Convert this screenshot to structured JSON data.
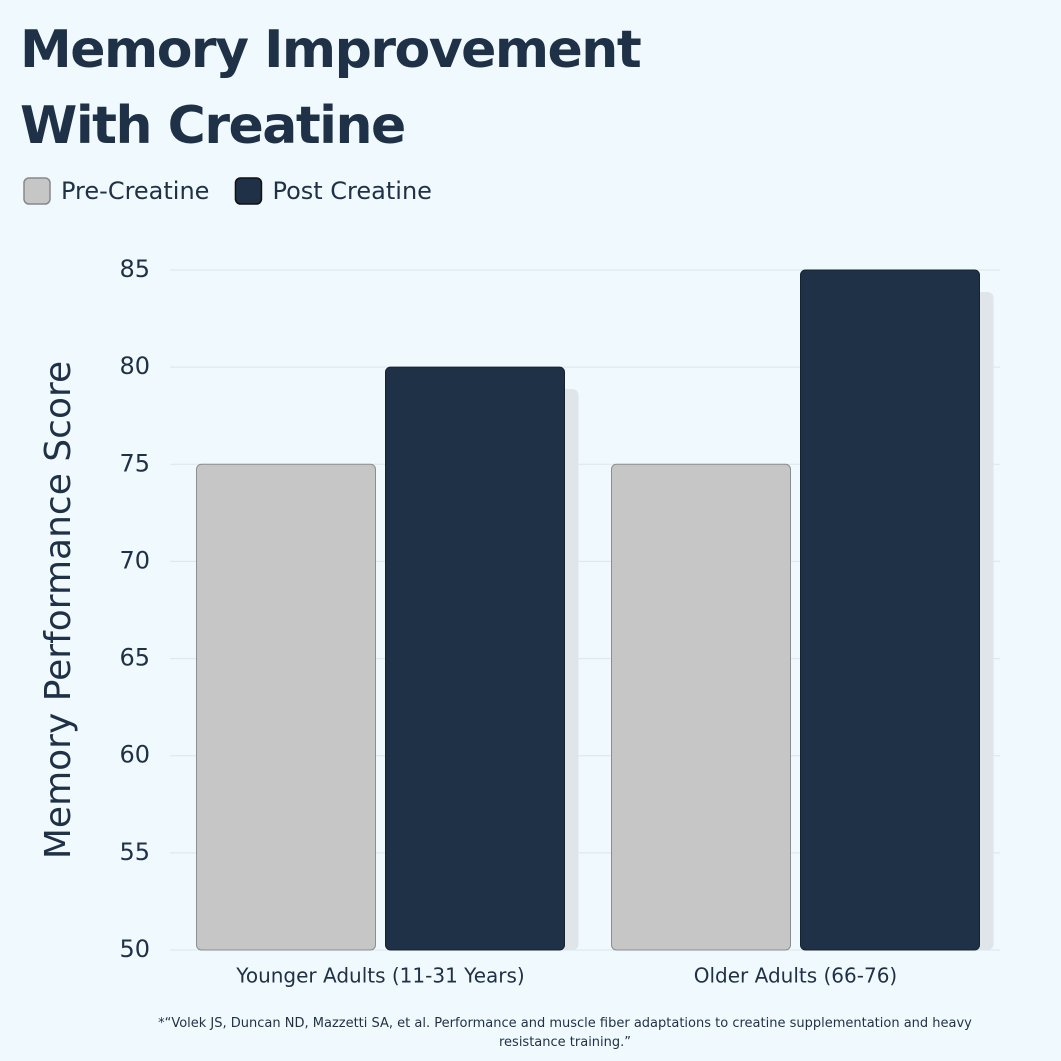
{
  "chart_data": {
    "type": "bar",
    "title": "Memory Improvement With Creatine",
    "y_label": "Memory Performance Score",
    "categories": [
      "Younger Adults (11-31 Years)",
      "Older Adults (66-76)"
    ],
    "series": [
      {
        "name": "Pre-Creatine",
        "color": "#c6c6c6",
        "values": [
          75,
          75
        ]
      },
      {
        "name": "Post Creatine",
        "color": "#1f3146",
        "values": [
          80,
          85
        ]
      }
    ],
    "ylim": [
      50,
      85
    ],
    "yticks": [
      50,
      55,
      60,
      65,
      70,
      75,
      80,
      85
    ],
    "grid": true,
    "footnote": "*“Volek JS, Duncan ND, Mazzetti SA, et al. Performance and muscle fiber adaptations to creatine supplementation and heavy resistance training.”"
  }
}
